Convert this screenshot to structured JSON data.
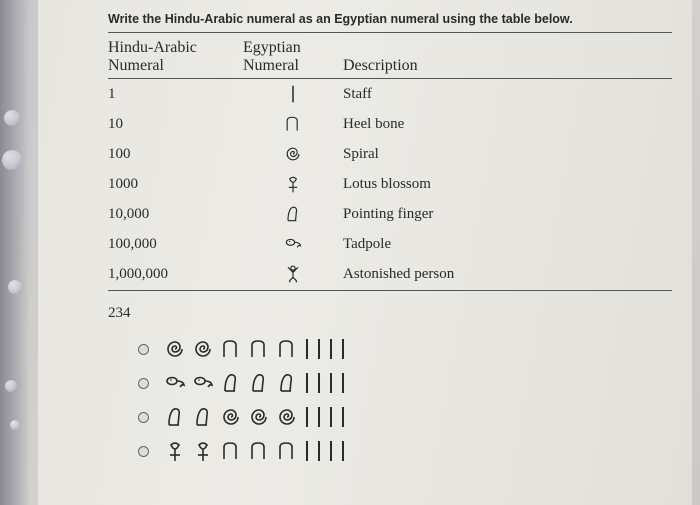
{
  "instruction": "Write the Hindu-Arabic numeral as an Egyptian numeral using the table below.",
  "header": {
    "col1a": "Hindu-Arabic",
    "col1b": "Numeral",
    "col2a": "Egyptian",
    "col2b": "Numeral",
    "col3": "Description"
  },
  "rows": [
    {
      "num": "1",
      "desc": "Staff",
      "icon": "staff"
    },
    {
      "num": "10",
      "desc": "Heel bone",
      "icon": "heel"
    },
    {
      "num": "100",
      "desc": "Spiral",
      "icon": "spiral"
    },
    {
      "num": "1000",
      "desc": "Lotus blossom",
      "icon": "lotus"
    },
    {
      "num": "10,000",
      "desc": "Pointing finger",
      "icon": "finger"
    },
    {
      "num": "100,000",
      "desc": "Tadpole",
      "icon": "tadpole"
    },
    {
      "num": "1,000,000",
      "desc": "Astonished person",
      "icon": "person"
    }
  ],
  "question": "234",
  "options": [
    {
      "seq": [
        "spiral",
        "spiral",
        "heel",
        "heel",
        "heel",
        "staff",
        "staff",
        "staff",
        "staff"
      ]
    },
    {
      "seq": [
        "tadpole",
        "tadpole",
        "finger",
        "finger",
        "finger",
        "staff",
        "staff",
        "staff",
        "staff"
      ]
    },
    {
      "seq": [
        "finger",
        "finger",
        "spiral",
        "spiral",
        "spiral",
        "staff",
        "staff",
        "staff",
        "staff"
      ]
    },
    {
      "seq": [
        "lotus",
        "lotus",
        "heel",
        "heel",
        "heel",
        "staff",
        "staff",
        "staff",
        "staff"
      ]
    }
  ],
  "colors": {
    "stroke": "#2a2a2a"
  }
}
